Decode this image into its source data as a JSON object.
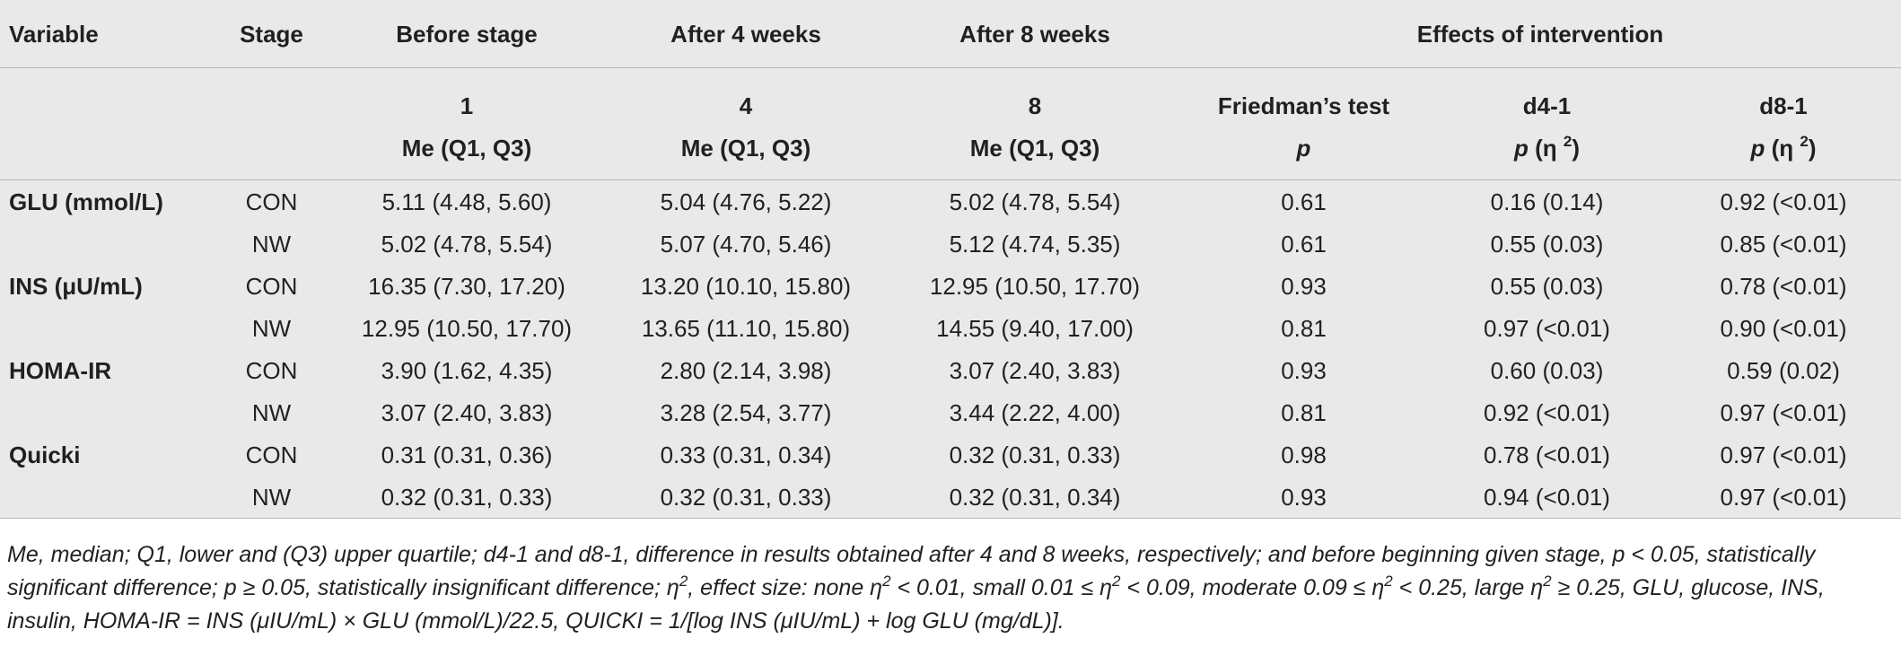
{
  "columns": {
    "variable": "Variable",
    "stage": "Stage",
    "before": "Before stage",
    "after4": "After 4 weeks",
    "after8": "After 8 weeks",
    "effects": "Effects of intervention"
  },
  "subheader": {
    "week1": "1",
    "week4": "4",
    "week8": "8",
    "stat": "Me (Q1, Q3)",
    "friedman": "Friedman’s test",
    "d41": "d4-1",
    "d81": "d8-1",
    "p": "p",
    "eta_open": "(η ",
    "eta_sup": "2",
    "eta_close": ")"
  },
  "rows": [
    {
      "variable": "GLU (mmol/L)",
      "stage": "CON",
      "before": "5.11 (4.48, 5.60)",
      "after4": "5.04 (4.76, 5.22)",
      "after8": "5.02 (4.78, 5.54)",
      "friedman": "0.61",
      "d41": "0.16 (0.14)",
      "d81": "0.92 (<0.01)"
    },
    {
      "variable": "",
      "stage": "NW",
      "before": "5.02 (4.78, 5.54)",
      "after4": "5.07 (4.70, 5.46)",
      "after8": "5.12 (4.74, 5.35)",
      "friedman": "0.61",
      "d41": "0.55 (0.03)",
      "d81": "0.85 (<0.01)"
    },
    {
      "variable": "INS (μU/mL)",
      "stage": "CON",
      "before": "16.35 (7.30, 17.20)",
      "after4": "13.20 (10.10, 15.80)",
      "after8": "12.95 (10.50, 17.70)",
      "friedman": "0.93",
      "d41": "0.55 (0.03)",
      "d81": "0.78 (<0.01)"
    },
    {
      "variable": "",
      "stage": "NW",
      "before": "12.95 (10.50, 17.70)",
      "after4": "13.65 (11.10, 15.80)",
      "after8": "14.55 (9.40, 17.00)",
      "friedman": "0.81",
      "d41": "0.97 (<0.01)",
      "d81": "0.90 (<0.01)"
    },
    {
      "variable": "HOMA-IR",
      "stage": "CON",
      "before": "3.90 (1.62, 4.35)",
      "after4": "2.80 (2.14, 3.98)",
      "after8": "3.07 (2.40, 3.83)",
      "friedman": "0.93",
      "d41": "0.60 (0.03)",
      "d81": "0.59 (0.02)"
    },
    {
      "variable": "",
      "stage": "NW",
      "before": "3.07 (2.40, 3.83)",
      "after4": "3.28 (2.54, 3.77)",
      "after8": "3.44 (2.22, 4.00)",
      "friedman": "0.81",
      "d41": "0.92 (<0.01)",
      "d81": "0.97 (<0.01)"
    },
    {
      "variable": "Quicki",
      "stage": "CON",
      "before": "0.31 (0.31, 0.36)",
      "after4": "0.33 (0.31, 0.34)",
      "after8": "0.32 (0.31, 0.33)",
      "friedman": "0.98",
      "d41": "0.78 (<0.01)",
      "d81": "0.97 (<0.01)"
    },
    {
      "variable": "",
      "stage": "NW",
      "before": "0.32 (0.31, 0.33)",
      "after4": "0.32 (0.31, 0.33)",
      "after8": "0.32 (0.31, 0.34)",
      "friedman": "0.93",
      "d41": "0.94 (<0.01)",
      "d81": "0.97 (<0.01)"
    }
  ],
  "footnote": {
    "t1": "Me, median; Q1, lower and (Q3) upper quartile; d4-1 and d8-1, difference in results obtained after 4 and 8 weeks, respectively; and before beginning given stage, p < 0.05, statistically significant difference; p ≥ 0.05, statistically insignificant difference; η",
    "t2": ", effect size: none η",
    "t3": " < 0.01, small 0.01 ≤ η",
    "t4": " < 0.09, moderate 0.09 ≤ η",
    "t5": " < 0.25, large η",
    "t6": " ≥ 0.25, GLU, glucose, INS, insulin, HOMA-IR = INS (μIU/mL) × GLU (mmol/L)/22.5, QUICKI = 1/[log INS (μIU/mL) + log GLU (mg/dL)].",
    "sup": "2"
  }
}
